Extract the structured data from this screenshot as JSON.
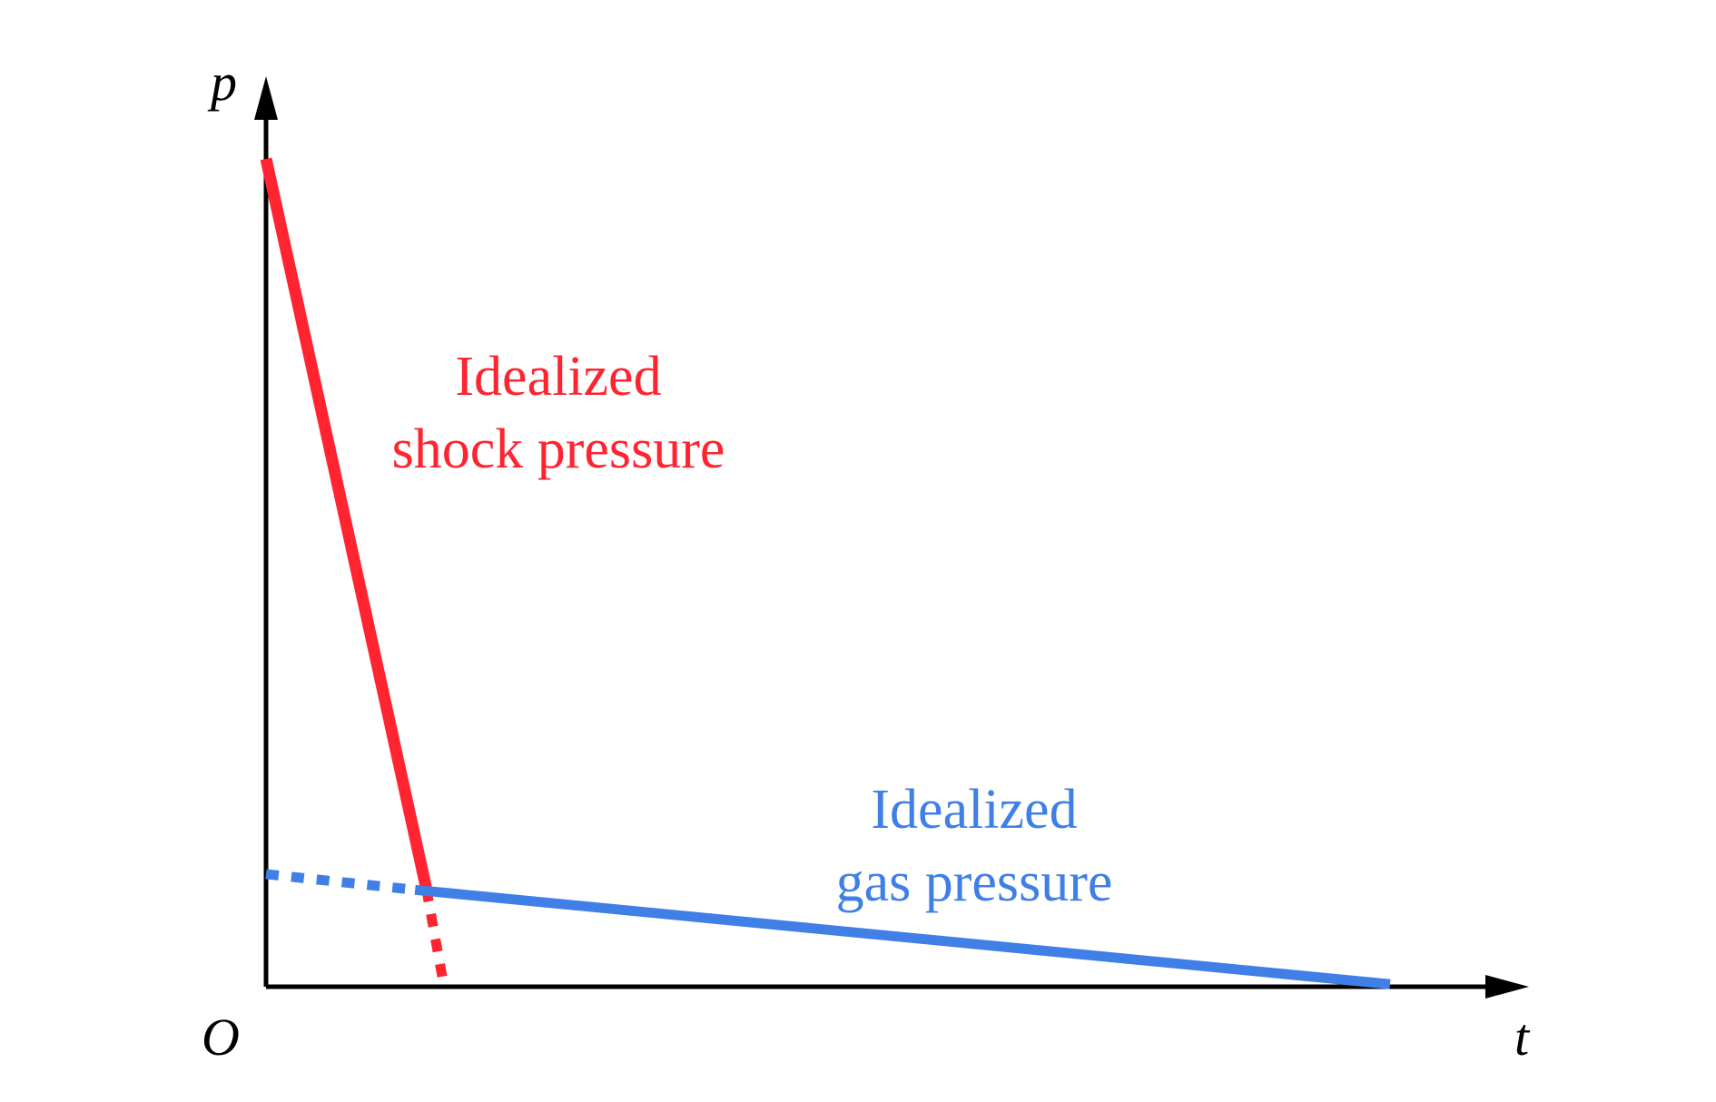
{
  "chart_data": {
    "type": "line",
    "title": "",
    "xlabel": "t",
    "ylabel": "p",
    "origin_label": "O",
    "xlim": [
      0,
      1
    ],
    "ylim": [
      0,
      1
    ],
    "grid": false,
    "legend": "none",
    "colors": {
      "axis": "#000000",
      "shock": "#ff2430",
      "gas": "#3f7fe6"
    },
    "series": [
      {
        "key": "shock",
        "label_lines": [
          "Idealized",
          "shock pressure"
        ],
        "solid": [
          [
            0,
            1.0
          ],
          [
            0.127,
            0.118
          ]
        ],
        "dotted": [
          [
            0.127,
            0.118
          ],
          [
            0.14,
            0.008
          ]
        ]
      },
      {
        "key": "gas",
        "label_lines": [
          "Idealized",
          "gas pressure"
        ],
        "solid": [
          [
            0.118,
            0.117
          ],
          [
            0.89,
            0.003
          ]
        ],
        "dotted": [
          [
            0.0,
            0.136
          ],
          [
            0.118,
            0.117
          ]
        ]
      }
    ]
  }
}
